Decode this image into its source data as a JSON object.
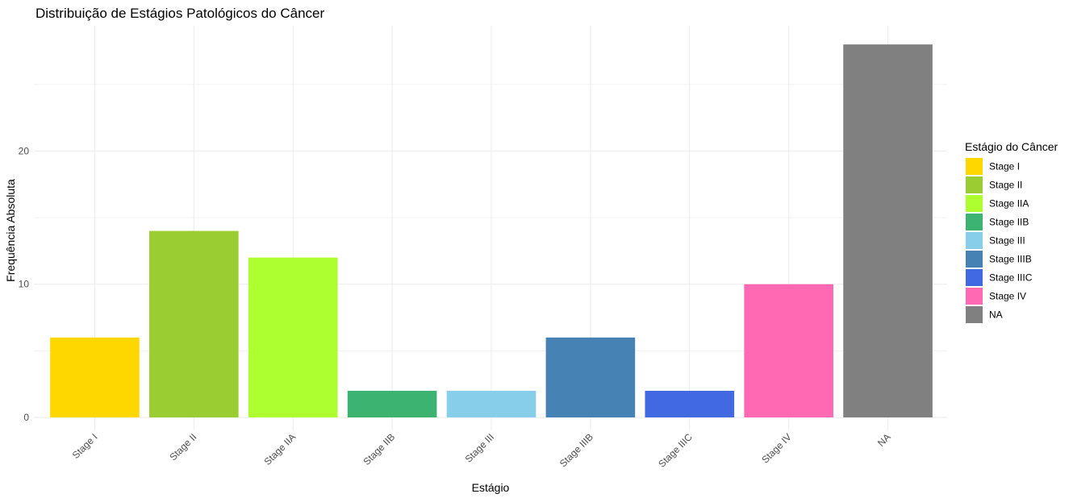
{
  "chart_data": {
    "type": "bar",
    "title": "Distribuição de Estágios Patológicos do Câncer",
    "xlabel": "Estágio",
    "ylabel": "Frequência Absoluta",
    "categories": [
      "Stage I",
      "Stage II",
      "Stage IIA",
      "Stage IIB",
      "Stage III",
      "Stage IIIB",
      "Stage IIIC",
      "Stage IV",
      "NA"
    ],
    "values": [
      6,
      14,
      12,
      2,
      2,
      6,
      2,
      10,
      28
    ],
    "colors": [
      "#FFD700",
      "#9ACD32",
      "#ADFF2F",
      "#3CB371",
      "#87CEEB",
      "#4682B4",
      "#4169E1",
      "#FF69B4",
      "#808080"
    ],
    "y_ticks": [
      0,
      10,
      20
    ],
    "ylim": [
      0,
      29.4
    ],
    "grid": true,
    "legend": {
      "title": "Estágio do Câncer",
      "position": "right",
      "entries": [
        "Stage I",
        "Stage II",
        "Stage IIA",
        "Stage IIB",
        "Stage III",
        "Stage IIIB",
        "Stage IIIC",
        "Stage IV",
        "NA"
      ]
    }
  }
}
